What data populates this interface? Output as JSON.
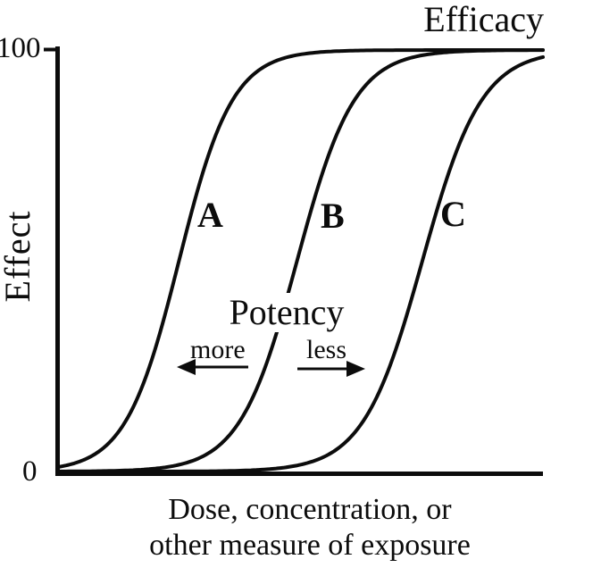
{
  "figure": {
    "ink_color": "#0c0c0c",
    "background_color": "#ffffff"
  },
  "chart_data": {
    "type": "line",
    "subtype": "dose-response sigmoid curves",
    "efficacy_label": "Efficacy",
    "ylabel": "Effect",
    "xlabel_line1": "Dose, concentration, or",
    "xlabel_line2": "other measure of exposure",
    "y_tick_max": "100",
    "y_tick_min": "0",
    "ylim": [
      0,
      100
    ],
    "grid": false,
    "series": [
      {
        "name": "A",
        "shape": "sigmoid",
        "midpoint_frac": 0.249,
        "width_frac": 0.055,
        "max_effect": 100
      },
      {
        "name": "B",
        "shape": "sigmoid",
        "midpoint_frac": 0.492,
        "width_frac": 0.059,
        "max_effect": 100
      },
      {
        "name": "C",
        "shape": "sigmoid",
        "midpoint_frac": 0.75,
        "width_frac": 0.061,
        "max_effect": 100
      }
    ],
    "potency_annotation": {
      "title": "Potency",
      "left_label": "more",
      "right_label": "less"
    }
  }
}
